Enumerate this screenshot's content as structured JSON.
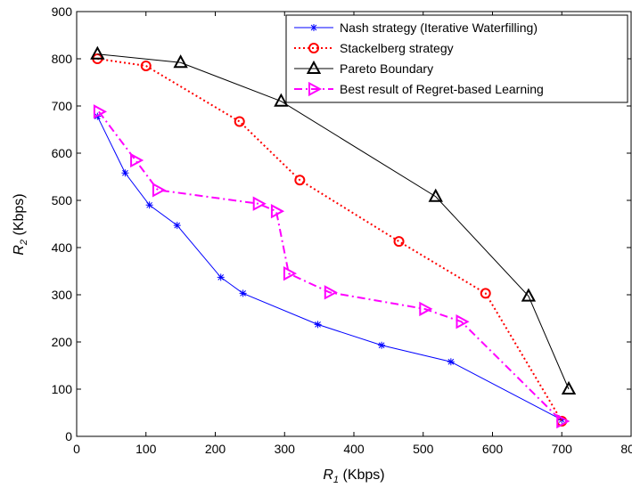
{
  "chart_data": {
    "type": "line",
    "xlabel": {
      "main": "R",
      "sub": "1",
      "unit": " (Kbps)"
    },
    "ylabel": {
      "main": "R",
      "sub": "2",
      "unit": " (Kbps)"
    },
    "xlim": [
      0,
      800
    ],
    "ylim": [
      0,
      900
    ],
    "xticks": [
      0,
      100,
      200,
      300,
      400,
      500,
      600,
      700,
      800
    ],
    "yticks": [
      0,
      100,
      200,
      300,
      400,
      500,
      600,
      700,
      800,
      900
    ],
    "grid": false,
    "legend_position": "top-right",
    "series": [
      {
        "name": "Nash strategy (Iterative Waterfilling)",
        "color": "#0000ff",
        "line_style": "solid",
        "marker": "asterisk",
        "x": [
          30,
          70,
          105,
          145,
          208,
          240,
          348,
          440,
          540,
          700
        ],
        "y": [
          678,
          558,
          490,
          447,
          337,
          303,
          237,
          193,
          158,
          35
        ]
      },
      {
        "name": "Stackelberg strategy",
        "color": "#ff0000",
        "line_style": "dotted",
        "marker": "circle",
        "x": [
          30,
          100,
          235,
          322,
          465,
          590,
          700
        ],
        "y": [
          800,
          785,
          667,
          543,
          413,
          303,
          32
        ]
      },
      {
        "name": "Pareto Boundary",
        "color": "#000000",
        "line_style": "solid",
        "marker": "triangle-up",
        "x": [
          30,
          150,
          295,
          518,
          652,
          710
        ],
        "y": [
          810,
          792,
          710,
          508,
          297,
          100
        ]
      },
      {
        "name": "Best result of Regret-based Learning",
        "color": "#ff00ff",
        "line_style": "dashdot",
        "marker": "triangle-right",
        "x": [
          32,
          85,
          117,
          262,
          288,
          306,
          365,
          502,
          555,
          700
        ],
        "y": [
          688,
          585,
          522,
          493,
          477,
          345,
          305,
          270,
          243,
          32
        ]
      }
    ]
  }
}
